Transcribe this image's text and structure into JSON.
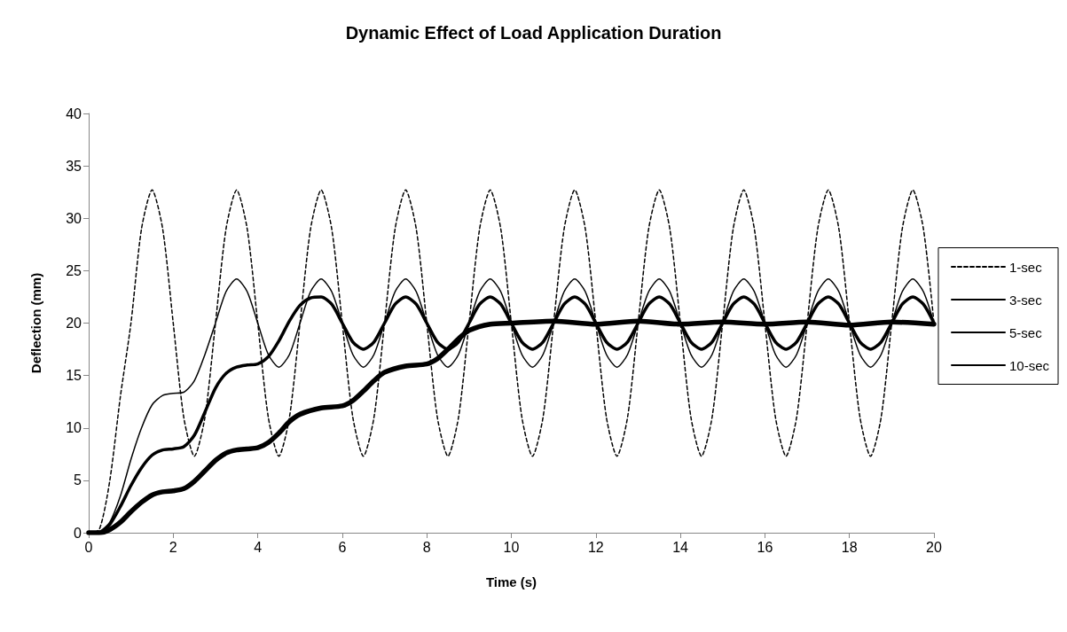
{
  "chart_data": {
    "type": "line",
    "title": "Dynamic Effect of Load Application Duration",
    "xlabel": "Time (s)",
    "ylabel": "Deflection (mm)",
    "x": [
      0,
      0.25,
      0.5,
      0.75,
      1,
      1.25,
      1.5,
      1.75,
      2,
      2.25,
      2.5,
      2.75,
      3,
      3.25,
      3.5,
      3.75,
      4,
      4.25,
      4.5,
      4.75,
      5,
      5.25,
      5.5,
      5.75,
      6,
      6.25,
      6.5,
      6.75,
      7,
      7.25,
      7.5,
      7.75,
      8,
      8.25,
      8.5,
      8.75,
      9,
      9.25,
      9.5,
      9.75,
      10,
      10.25,
      10.5,
      10.75,
      11,
      11.25,
      11.5,
      11.75,
      12,
      12.25,
      12.5,
      12.75,
      13,
      13.25,
      13.5,
      13.75,
      14,
      14.25,
      14.5,
      14.75,
      15,
      15.25,
      15.5,
      15.75,
      16,
      16.25,
      16.5,
      16.75,
      17,
      17.25,
      17.5,
      17.75,
      18,
      18.25,
      18.5,
      18.75,
      19,
      19.25,
      19.5,
      19.75,
      20
    ],
    "series": [
      {
        "name": "1-sec",
        "color": "#000000",
        "line_style": "dashed",
        "values": [
          0,
          0.3,
          5,
          13,
          20,
          29,
          32.7,
          29,
          20,
          11,
          7.3,
          11,
          20,
          29,
          32.7,
          29,
          20,
          11,
          7.3,
          11,
          20,
          29,
          32.7,
          29,
          20,
          11,
          7.3,
          11,
          20,
          29,
          32.7,
          29,
          20,
          11,
          7.3,
          11,
          20,
          29,
          32.7,
          29,
          20,
          11,
          7.3,
          11,
          20,
          29,
          32.7,
          29,
          20,
          11,
          7.3,
          11,
          20,
          29,
          32.7,
          29,
          20,
          11,
          7.3,
          11,
          20,
          29,
          32.7,
          29,
          20,
          11,
          7.3,
          11,
          20,
          29,
          32.7,
          29,
          20,
          11,
          7.3,
          11,
          20,
          29,
          32.7,
          29,
          20
        ]
      },
      {
        "name": "3-sec",
        "color": "#000000",
        "line_style": "solid",
        "values": [
          0,
          0.1,
          1,
          3.5,
          7,
          10,
          12.2,
          13.1,
          13.3,
          13.4,
          14.5,
          17,
          20,
          23,
          24.2,
          23,
          20,
          17,
          15.8,
          17,
          20,
          23,
          24.2,
          23,
          20,
          17,
          15.8,
          17,
          20,
          23,
          24.2,
          23,
          20,
          17,
          15.8,
          17,
          20,
          23,
          24.2,
          23,
          20,
          17,
          15.8,
          17,
          20,
          23,
          24.2,
          23,
          20,
          17,
          15.8,
          17,
          20,
          23,
          24.2,
          23,
          20,
          17,
          15.8,
          17,
          20,
          23,
          24.2,
          23,
          20,
          17,
          15.8,
          17,
          20,
          23,
          24.2,
          23,
          20,
          17,
          15.8,
          17,
          20,
          23,
          24.2,
          23,
          20
        ]
      },
      {
        "name": "5-sec",
        "color": "#000000",
        "line_style": "solid",
        "values": [
          0,
          0,
          0.8,
          2.5,
          4.5,
          6.2,
          7.4,
          7.9,
          8,
          8.2,
          9.3,
          11.5,
          13.8,
          15.2,
          15.8,
          16,
          16.1,
          16.8,
          18.3,
          20.2,
          21.7,
          22.4,
          22.5,
          21.8,
          20,
          18.2,
          17.5,
          18.2,
          20,
          21.8,
          22.5,
          21.8,
          20,
          18.2,
          17.5,
          18.2,
          20,
          21.8,
          22.5,
          21.8,
          20,
          18.2,
          17.5,
          18.2,
          20,
          21.8,
          22.5,
          21.8,
          20,
          18.2,
          17.5,
          18.2,
          20,
          21.8,
          22.5,
          21.8,
          20,
          18.2,
          17.5,
          18.2,
          20,
          21.8,
          22.5,
          21.8,
          20,
          18.2,
          17.5,
          18.2,
          20,
          21.8,
          22.5,
          21.8,
          20,
          18.2,
          17.5,
          18.2,
          20,
          21.8,
          22.5,
          21.8,
          20
        ]
      },
      {
        "name": "10-sec",
        "color": "#000000",
        "line_style": "solid",
        "x": [
          0,
          0.25,
          0.5,
          0.75,
          1,
          1.25,
          1.5,
          1.75,
          2,
          2.25,
          2.5,
          2.75,
          3,
          3.25,
          3.5,
          3.75,
          4,
          4.25,
          4.5,
          4.75,
          5,
          5.5,
          6,
          6.25,
          6.5,
          6.75,
          7,
          7.5,
          8,
          8.25,
          8.5,
          8.75,
          9,
          9.5,
          10,
          11,
          12,
          13,
          14,
          15,
          16,
          17,
          18,
          19,
          20
        ],
        "values": [
          0,
          0,
          0.3,
          1,
          2,
          2.9,
          3.6,
          3.9,
          4,
          4.2,
          4.9,
          5.9,
          6.9,
          7.6,
          7.9,
          8,
          8.1,
          8.6,
          9.5,
          10.6,
          11.3,
          11.9,
          12.1,
          12.6,
          13.5,
          14.5,
          15.3,
          15.9,
          16.1,
          16.6,
          17.5,
          18.5,
          19.3,
          19.9,
          20,
          20.2,
          19.9,
          20.2,
          19.9,
          20.1,
          19.9,
          20.1,
          19.8,
          20.1,
          19.9
        ]
      }
    ],
    "xlim": [
      0,
      20
    ],
    "xticks": [
      0,
      2,
      4,
      6,
      8,
      10,
      12,
      14,
      16,
      18,
      20
    ],
    "ylim": [
      0,
      40
    ],
    "yticks": [
      0,
      5,
      10,
      15,
      20,
      25,
      30,
      35,
      40
    ],
    "grid": false,
    "legend": "right",
    "marker": "none"
  }
}
